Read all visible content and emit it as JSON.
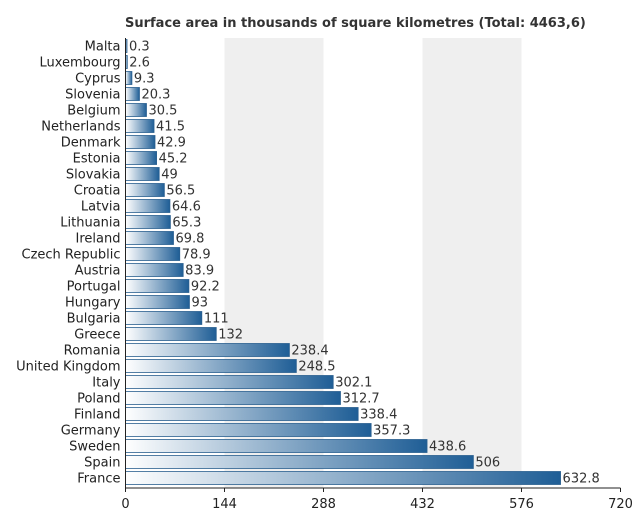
{
  "chart_data": {
    "type": "bar",
    "orientation": "horizontal",
    "title": "Surface area in thousands of square kilometres (Total: 4463,6)",
    "xlabel": "",
    "ylabel": "",
    "xlim": [
      0,
      720
    ],
    "ticks": [
      "0",
      "144",
      "288",
      "432",
      "576",
      "720"
    ],
    "grid": "alternating vertical bands",
    "legend": "none",
    "colors": {
      "bar_dark": "#1f5e96",
      "bar_light": "#ffffff",
      "band": "#efefef",
      "axis": "#222222"
    },
    "categories": [
      "Malta",
      "Luxembourg",
      "Cyprus",
      "Slovenia",
      "Belgium",
      "Netherlands",
      "Denmark",
      "Estonia",
      "Slovakia",
      "Croatia",
      "Latvia",
      "Lithuania",
      "Ireland",
      "Czech Republic",
      "Austria",
      "Portugal",
      "Hungary",
      "Bulgaria",
      "Greece",
      "Romania",
      "United Kingdom",
      "Italy",
      "Poland",
      "Finland",
      "Germany",
      "Sweden",
      "Spain",
      "France"
    ],
    "values": [
      0.3,
      2.6,
      9.3,
      20.3,
      30.5,
      41.5,
      42.9,
      45.2,
      49,
      56.5,
      64.6,
      65.3,
      69.8,
      78.9,
      83.9,
      92.2,
      93,
      111,
      132,
      238.4,
      248.5,
      302.1,
      312.7,
      338.4,
      357.3,
      438.6,
      506,
      632.8
    ],
    "value_labels": [
      "0.3",
      "2.6",
      "9.3",
      "20.3",
      "30.5",
      "41.5",
      "42.9",
      "45.2",
      "49",
      "56.5",
      "64.6",
      "65.3",
      "69.8",
      "78.9",
      "83.9",
      "92.2",
      "93",
      "111",
      "132",
      "238.4",
      "248.5",
      "302.1",
      "312.7",
      "338.4",
      "357.3",
      "438.6",
      "506",
      "632.8"
    ]
  }
}
